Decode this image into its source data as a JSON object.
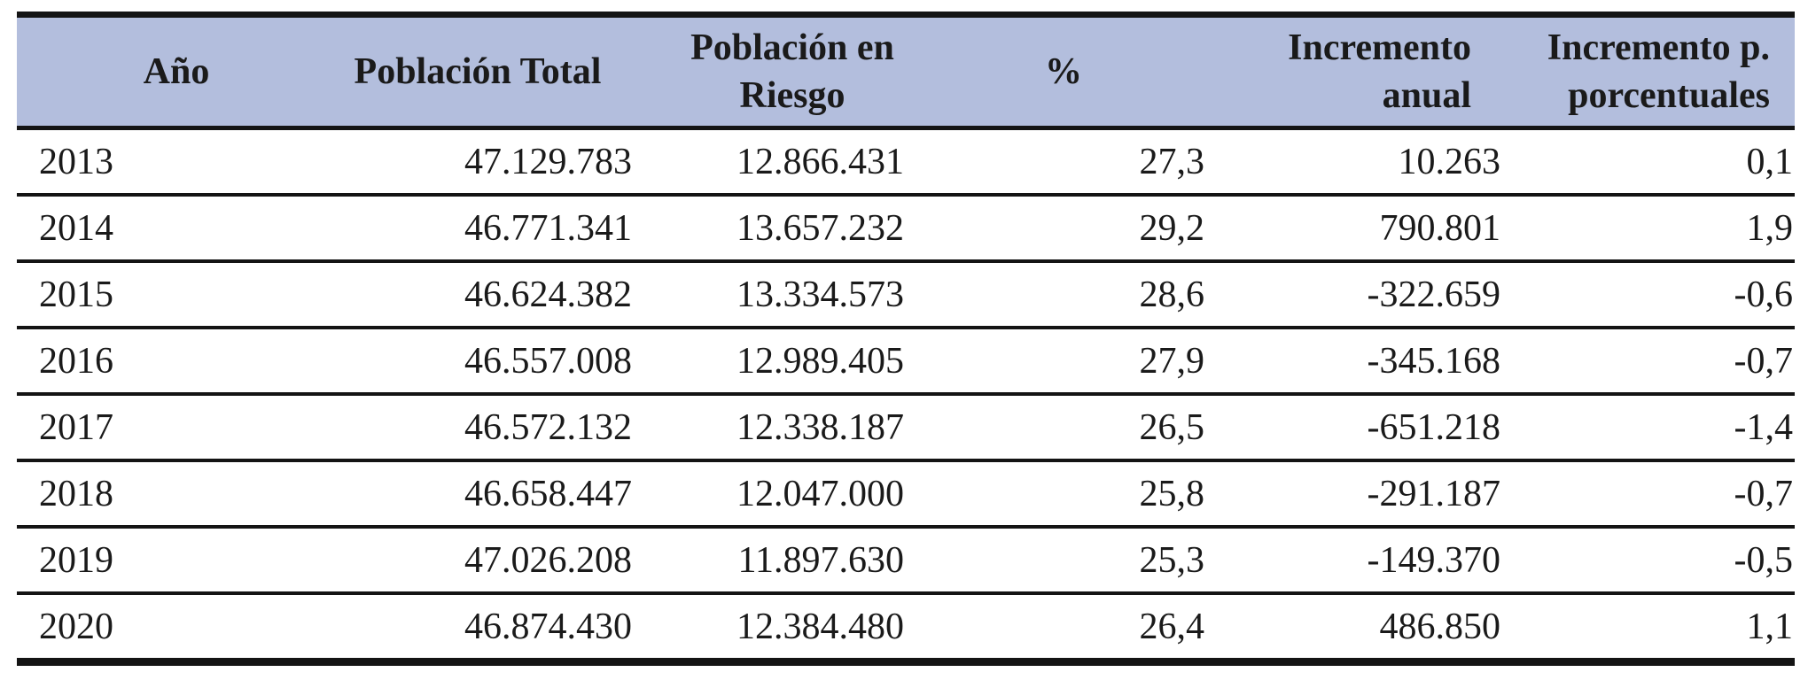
{
  "colors": {
    "header_background": "#b3bedd",
    "rule_lines": "#141414",
    "text": "#1a1a1a",
    "page_background": "#ffffff"
  },
  "table": {
    "columns": [
      "Año",
      "Población Total",
      "Población en\nRiesgo",
      "%",
      "Incremento\nanual",
      "Incremento p.\nporcentuales"
    ],
    "rows": [
      [
        "2013",
        "47.129.783",
        "12.866.431",
        "27,3",
        "10.263",
        "0,1"
      ],
      [
        "2014",
        "46.771.341",
        "13.657.232",
        "29,2",
        "790.801",
        "1,9"
      ],
      [
        "2015",
        "46.624.382",
        "13.334.573",
        "28,6",
        "-322.659",
        "-0,6"
      ],
      [
        "2016",
        "46.557.008",
        "12.989.405",
        "27,9",
        "-345.168",
        "-0,7"
      ],
      [
        "2017",
        "46.572.132",
        "12.338.187",
        "26,5",
        "-651.218",
        "-1,4"
      ],
      [
        "2018",
        "46.658.447",
        "12.047.000",
        "25,8",
        "-291.187",
        "-0,7"
      ],
      [
        "2019",
        "47.026.208",
        "11.897.630",
        "25,3",
        "-149.370",
        "-0,5"
      ],
      [
        "2020",
        "46.874.430",
        "12.384.480",
        "26,4",
        "486.850",
        "1,1"
      ]
    ]
  }
}
